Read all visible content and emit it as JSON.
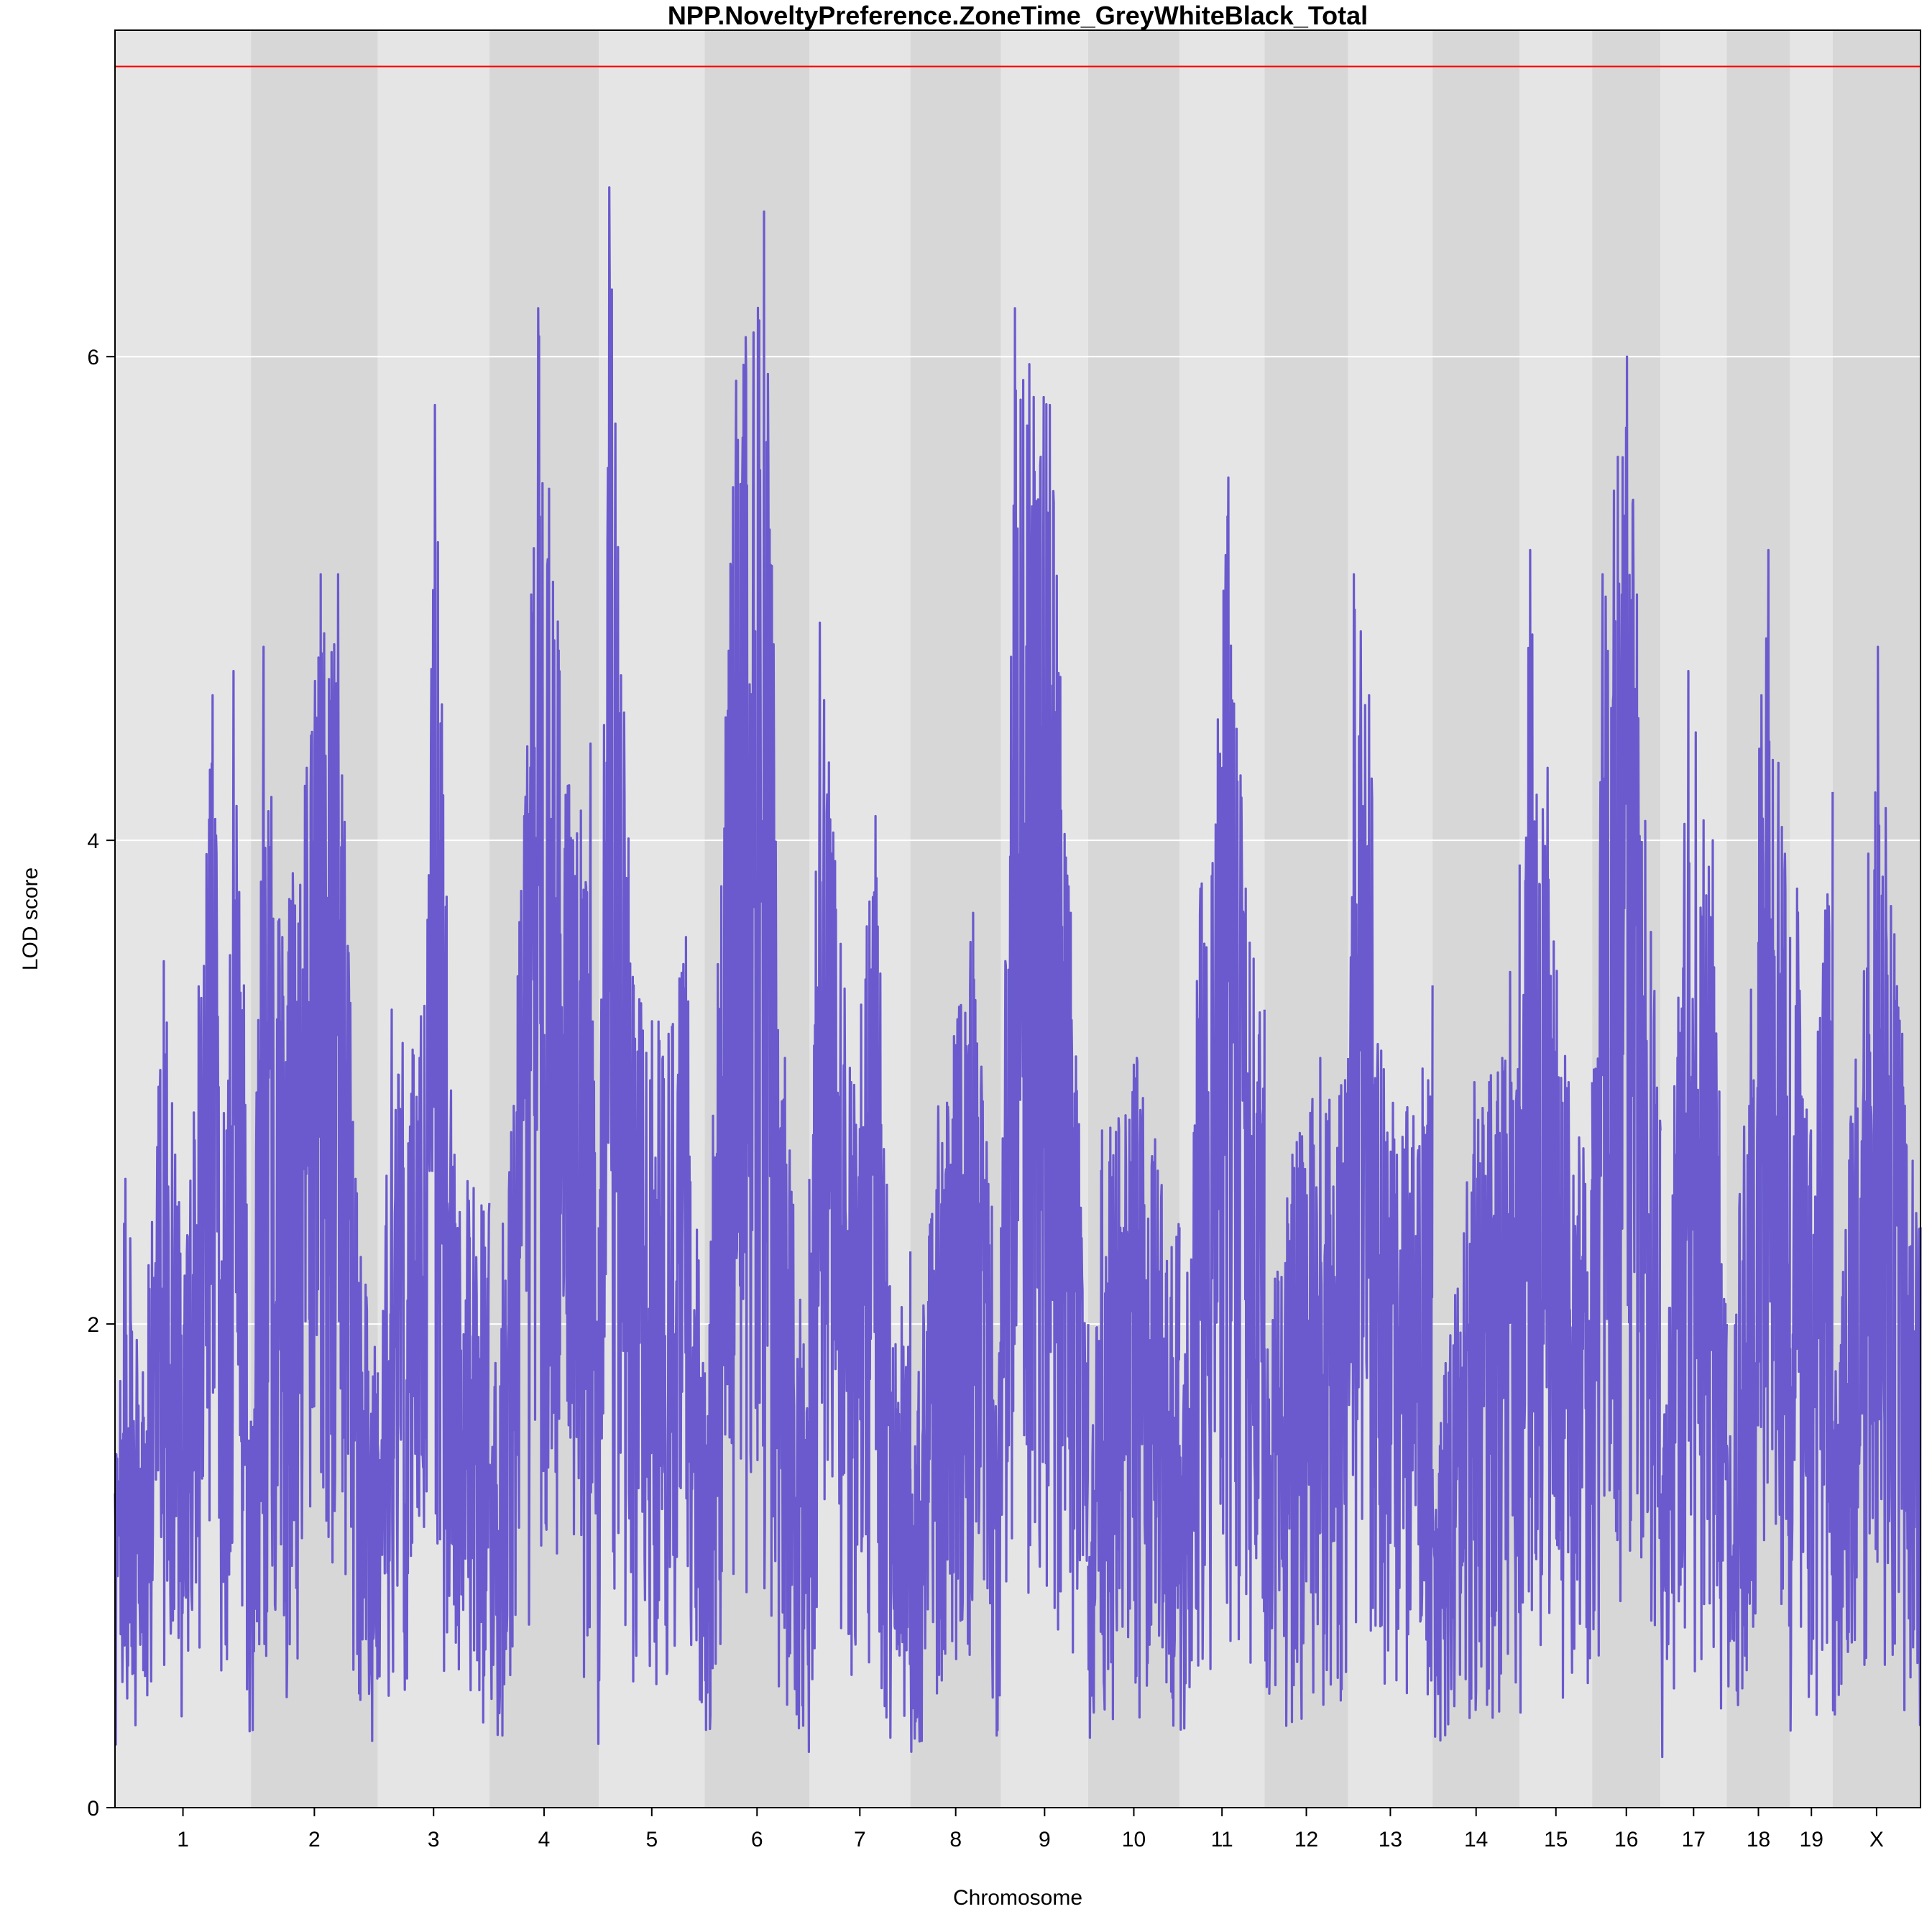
{
  "chart_data": {
    "type": "line",
    "title": "NPP.NoveltyPreference.ZoneTime_GreyWhiteBlack_Total",
    "xlabel": "Chromosome",
    "ylabel": "LOD score",
    "ylim": [
      0,
      7.35
    ],
    "yticks": [
      0,
      2,
      4,
      6
    ],
    "threshold": 7.2,
    "grid": true,
    "colors": {
      "line": "#6A5ACD",
      "threshold": "#FF0000",
      "band_light": "#E5E5E5",
      "band_dark": "#D7D7D7",
      "grid": "#FFFFFF"
    },
    "chromosomes": [
      {
        "name": "1",
        "length": 195
      },
      {
        "name": "2",
        "length": 182
      },
      {
        "name": "3",
        "length": 160
      },
      {
        "name": "4",
        "length": 157
      },
      {
        "name": "5",
        "length": 152
      },
      {
        "name": "6",
        "length": 150
      },
      {
        "name": "7",
        "length": 145
      },
      {
        "name": "8",
        "length": 130
      },
      {
        "name": "9",
        "length": 125
      },
      {
        "name": "10",
        "length": 131
      },
      {
        "name": "11",
        "length": 122
      },
      {
        "name": "12",
        "length": 120
      },
      {
        "name": "13",
        "length": 121
      },
      {
        "name": "14",
        "length": 125
      },
      {
        "name": "15",
        "length": 104
      },
      {
        "name": "16",
        "length": 98
      },
      {
        "name": "17",
        "length": 95
      },
      {
        "name": "18",
        "length": 91
      },
      {
        "name": "19",
        "length": 61
      },
      {
        "name": "X",
        "length": 126
      }
    ],
    "series": [
      {
        "chromosome": "1",
        "peaks": [
          [
            0,
            1.3
          ],
          [
            15,
            2.6
          ],
          [
            40,
            1.8
          ],
          [
            70,
            3.5
          ],
          [
            100,
            2.2
          ],
          [
            140,
            4.6
          ],
          [
            160,
            2.8
          ],
          [
            170,
            4.7
          ],
          [
            185,
            3.4
          ],
          [
            195,
            1.6
          ]
        ]
      },
      {
        "chromosome": "2",
        "peaks": [
          [
            0,
            1.6
          ],
          [
            18,
            4.8
          ],
          [
            45,
            3.6
          ],
          [
            80,
            4.3
          ],
          [
            100,
            5.1
          ],
          [
            125,
            5.1
          ],
          [
            150,
            2.6
          ],
          [
            182,
            1.8
          ]
        ]
      },
      {
        "chromosome": "3",
        "peaks": [
          [
            0,
            1.5
          ],
          [
            20,
            3.3
          ],
          [
            60,
            3.1
          ],
          [
            82,
            5.8
          ],
          [
            110,
            2.7
          ],
          [
            160,
            2.5
          ]
        ]
      },
      {
        "chromosome": "4",
        "peaks": [
          [
            0,
            1.4
          ],
          [
            50,
            4.1
          ],
          [
            70,
            6.2
          ],
          [
            120,
            4.0
          ],
          [
            145,
            4.4
          ],
          [
            157,
            1.5
          ]
        ]
      },
      {
        "chromosome": "5",
        "peaks": [
          [
            0,
            2.4
          ],
          [
            15,
            6.7
          ],
          [
            50,
            3.4
          ],
          [
            100,
            3.2
          ],
          [
            125,
            3.6
          ],
          [
            152,
            1.7
          ]
        ]
      },
      {
        "chromosome": "6",
        "peaks": [
          [
            0,
            1.8
          ],
          [
            45,
            5.9
          ],
          [
            85,
            6.6
          ],
          [
            115,
            3.1
          ],
          [
            150,
            1.6
          ]
        ]
      },
      {
        "chromosome": "7",
        "peaks": [
          [
            0,
            2.6
          ],
          [
            15,
            4.9
          ],
          [
            60,
            3.0
          ],
          [
            95,
            4.1
          ],
          [
            120,
            1.9
          ],
          [
            145,
            2.3
          ]
        ]
      },
      {
        "chromosome": "8",
        "peaks": [
          [
            0,
            1.4
          ],
          [
            40,
            2.9
          ],
          [
            90,
            3.7
          ],
          [
            130,
            1.9
          ]
        ]
      },
      {
        "chromosome": "9",
        "peaks": [
          [
            0,
            2.4
          ],
          [
            20,
            6.2
          ],
          [
            70,
            5.8
          ],
          [
            100,
            3.7
          ],
          [
            125,
            2.0
          ]
        ]
      },
      {
        "chromosome": "10",
        "peaks": [
          [
            0,
            1.0
          ],
          [
            20,
            2.8
          ],
          [
            70,
            3.1
          ],
          [
            131,
            2.4
          ]
        ]
      },
      {
        "chromosome": "11",
        "peaks": [
          [
            0,
            1.5
          ],
          [
            30,
            3.8
          ],
          [
            55,
            4.5
          ],
          [
            70,
            5.5
          ],
          [
            95,
            3.8
          ],
          [
            122,
            3.3
          ]
        ]
      },
      {
        "chromosome": "12",
        "peaks": [
          [
            0,
            1.9
          ],
          [
            40,
            2.7
          ],
          [
            80,
            3.1
          ],
          [
            120,
            3.1
          ]
        ]
      },
      {
        "chromosome": "13",
        "peaks": [
          [
            0,
            2.5
          ],
          [
            8,
            5.1
          ],
          [
            30,
            4.6
          ],
          [
            70,
            2.7
          ],
          [
            121,
            3.4
          ]
        ]
      },
      {
        "chromosome": "14",
        "peaks": [
          [
            0,
            1.4
          ],
          [
            60,
            3.0
          ],
          [
            100,
            3.1
          ],
          [
            125,
            3.9
          ]
        ]
      },
      {
        "chromosome": "15",
        "peaks": [
          [
            0,
            2.9
          ],
          [
            15,
            5.2
          ],
          [
            40,
            4.3
          ],
          [
            70,
            3.0
          ],
          [
            104,
            2.6
          ]
        ]
      },
      {
        "chromosome": "16",
        "peaks": [
          [
            0,
            3.0
          ],
          [
            15,
            5.1
          ],
          [
            50,
            6.0
          ],
          [
            98,
            2.8
          ]
        ]
      },
      {
        "chromosome": "17",
        "peaks": [
          [
            0,
            1.3
          ],
          [
            40,
            4.7
          ],
          [
            75,
            4.0
          ],
          [
            95,
            2.0
          ]
        ]
      },
      {
        "chromosome": "18",
        "peaks": [
          [
            0,
            1.5
          ],
          [
            50,
            4.6
          ],
          [
            60,
            5.2
          ],
          [
            91,
            3.6
          ]
        ]
      },
      {
        "chromosome": "19",
        "peaks": [
          [
            0,
            1.9
          ],
          [
            10,
            3.8
          ],
          [
            30,
            2.8
          ],
          [
            61,
            4.2
          ]
        ]
      },
      {
        "chromosome": "X",
        "peaks": [
          [
            0,
            1.6
          ],
          [
            65,
            4.8
          ],
          [
            100,
            3.2
          ],
          [
            126,
            2.4
          ]
        ]
      }
    ]
  }
}
